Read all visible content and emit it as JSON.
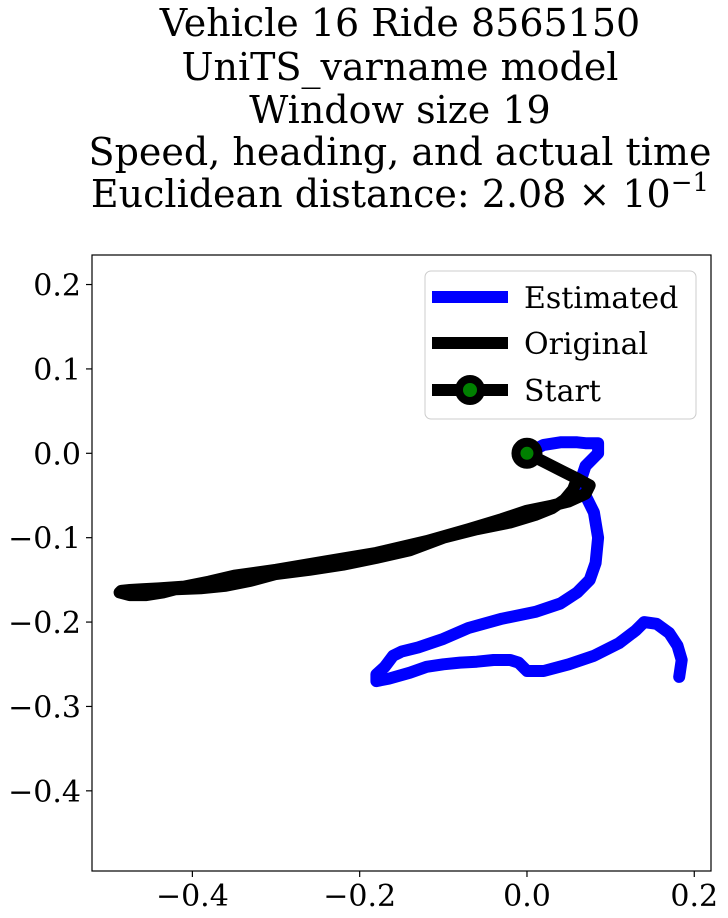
{
  "chart_data": {
    "type": "line",
    "title_lines": [
      "Vehicle 16 Ride 8565150",
      "UniTS_varname model",
      "Window size 19",
      "Speed, heading, and actual time",
      "Euclidean distance: 2.08 × 10⁻¹"
    ],
    "title_exponent_base": "Euclidean distance: 2.08 × 10",
    "title_exponent": "−1",
    "xlabel": "",
    "ylabel": "",
    "xlim": [
      -0.52,
      0.22
    ],
    "ylim": [
      -0.495,
      0.235
    ],
    "xticks": [
      -0.4,
      -0.2,
      0.0,
      0.2
    ],
    "xtick_labels": [
      "−0.4",
      "−0.2",
      "0.0",
      "0.2"
    ],
    "yticks": [
      0.2,
      0.1,
      0.0,
      -0.1,
      -0.2,
      -0.3,
      -0.4
    ],
    "ytick_labels": [
      "0.2",
      "0.1",
      "0.0",
      "−0.1",
      "−0.2",
      "−0.3",
      "−0.4"
    ],
    "grid": false,
    "legend_position": "top-right",
    "series": [
      {
        "name": "Estimated",
        "color": "#0000ff",
        "x": [
          0.0,
          0.02,
          0.04,
          0.06,
          0.07,
          0.085,
          0.085,
          0.07,
          0.065,
          0.07,
          0.08,
          0.085,
          0.082,
          0.075,
          0.06,
          0.04,
          0.01,
          -0.03,
          -0.07,
          -0.1,
          -0.13,
          -0.15,
          -0.16,
          -0.17,
          -0.18,
          -0.18,
          -0.165,
          -0.14,
          -0.12,
          -0.1,
          -0.08,
          -0.06,
          -0.04,
          -0.02,
          -0.01,
          0.0,
          0.02,
          0.05,
          0.08,
          0.11,
          0.13,
          0.14,
          0.155,
          0.17,
          0.18,
          0.185,
          0.182
        ],
        "y": [
          0.0,
          0.01,
          0.013,
          0.013,
          0.012,
          0.012,
          0.0,
          -0.015,
          -0.03,
          -0.05,
          -0.07,
          -0.1,
          -0.13,
          -0.15,
          -0.165,
          -0.178,
          -0.188,
          -0.196,
          -0.207,
          -0.22,
          -0.23,
          -0.235,
          -0.24,
          -0.253,
          -0.262,
          -0.27,
          -0.267,
          -0.26,
          -0.253,
          -0.25,
          -0.248,
          -0.247,
          -0.245,
          -0.245,
          -0.248,
          -0.258,
          -0.258,
          -0.25,
          -0.24,
          -0.225,
          -0.21,
          -0.2,
          -0.202,
          -0.213,
          -0.228,
          -0.245,
          -0.265
        ]
      },
      {
        "name": "Original",
        "color": "#000000",
        "x": [
          0.0,
          0.02,
          0.04,
          0.06,
          0.075,
          0.07,
          0.05,
          0.03,
          0.0,
          -0.03,
          -0.07,
          -0.12,
          -0.18,
          -0.24,
          -0.3,
          -0.35,
          -0.38,
          -0.41,
          -0.44,
          -0.46,
          -0.475,
          -0.485,
          -0.487,
          -0.475,
          -0.455,
          -0.435,
          -0.42,
          -0.39,
          -0.36,
          -0.33,
          -0.3,
          -0.26,
          -0.22,
          -0.18,
          -0.14,
          -0.1,
          -0.06,
          -0.02,
          0.01,
          0.03,
          0.045,
          0.055,
          0.06
        ],
        "y": [
          0.0,
          -0.01,
          -0.02,
          -0.03,
          -0.038,
          -0.048,
          -0.057,
          -0.062,
          -0.068,
          -0.078,
          -0.09,
          -0.104,
          -0.118,
          -0.128,
          -0.138,
          -0.145,
          -0.152,
          -0.158,
          -0.16,
          -0.161,
          -0.162,
          -0.163,
          -0.165,
          -0.168,
          -0.168,
          -0.165,
          -0.161,
          -0.16,
          -0.157,
          -0.151,
          -0.143,
          -0.138,
          -0.132,
          -0.124,
          -0.115,
          -0.1,
          -0.09,
          -0.082,
          -0.073,
          -0.065,
          -0.055,
          -0.043,
          -0.03
        ]
      }
    ],
    "start_point": {
      "name": "Start",
      "x": 0.0,
      "y": 0.0,
      "edge_color": "#000000",
      "face_color": "#008000"
    }
  }
}
